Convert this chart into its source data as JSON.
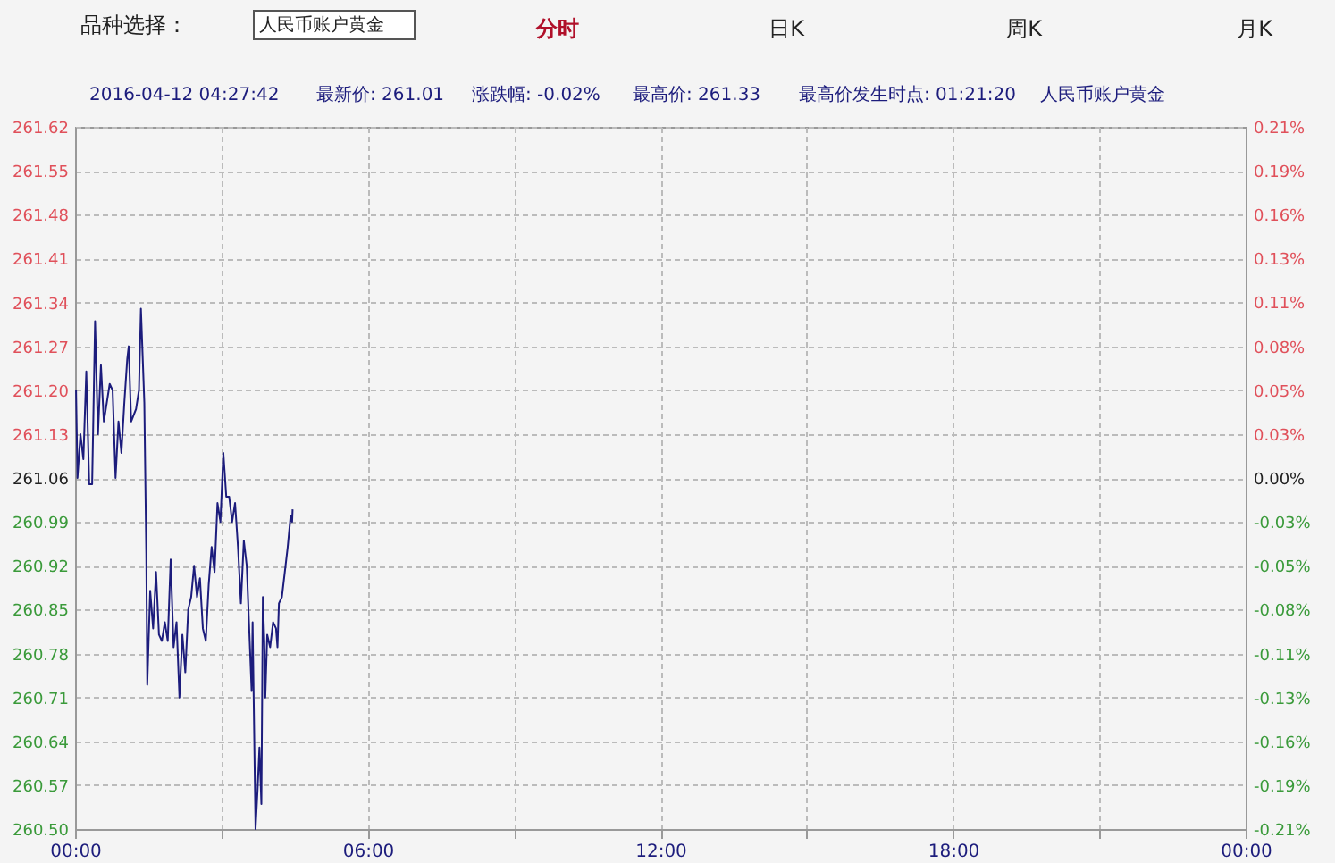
{
  "chart_data": {
    "type": "line",
    "annotations": [
      "品种选择：",
      "人民币账户黄金",
      "分时",
      "日K",
      "周K",
      "月K",
      "2016-04-12 04:27:42",
      "最新价: 261.01",
      "涨跌幅: -0.02%",
      "最高价: 261.33",
      "最高价发生时点:  01:21:20",
      "人民币账户黄金"
    ],
    "x": [
      0.02,
      0.05,
      0.11,
      0.17,
      0.23,
      0.29,
      0.35,
      0.41,
      0.47,
      0.53,
      0.59,
      0.65,
      0.71,
      0.77,
      0.83,
      0.89,
      0.95,
      1.01,
      1.07,
      1.1,
      1.15,
      1.25,
      1.31,
      1.35,
      1.42,
      1.46,
      1.48,
      1.54,
      1.6,
      1.66,
      1.72,
      1.78,
      1.84,
      1.9,
      1.96,
      2.02,
      2.08,
      2.14,
      2.2,
      2.26,
      2.32,
      2.38,
      2.44,
      2.5,
      2.56,
      2.62,
      2.68,
      2.74,
      2.8,
      2.86,
      2.92,
      2.98,
      3.04,
      3.1,
      3.16,
      3.22,
      3.28,
      3.34,
      3.4,
      3.46,
      3.52,
      3.58,
      3.62,
      3.64,
      3.7,
      3.74,
      3.78,
      3.82,
      3.85,
      3.88,
      3.9,
      3.94,
      4.0,
      4.06,
      4.12,
      4.15,
      4.18,
      4.24,
      4.3,
      4.36,
      4.42,
      4.45,
      4.46
    ],
    "series": [
      {
        "color": "#1c1c7c",
        "values": [
          261.2,
          261.06,
          261.13,
          261.09,
          261.23,
          261.05,
          261.05,
          261.31,
          261.13,
          261.24,
          261.15,
          261.18,
          261.21,
          261.2,
          261.06,
          261.15,
          261.1,
          261.18,
          261.25,
          261.27,
          261.15,
          261.17,
          261.2,
          261.33,
          261.18,
          260.94,
          260.73,
          260.88,
          260.82,
          260.91,
          260.81,
          260.8,
          260.83,
          260.8,
          260.93,
          260.79,
          260.83,
          260.71,
          260.81,
          260.75,
          260.85,
          260.87,
          260.92,
          260.87,
          260.9,
          260.82,
          260.8,
          260.89,
          260.95,
          260.91,
          261.02,
          260.99,
          261.1,
          261.03,
          261.03,
          260.99,
          261.02,
          260.95,
          260.86,
          260.96,
          260.92,
          260.8,
          260.72,
          260.83,
          260.5,
          260.56,
          260.63,
          260.54,
          260.87,
          260.8,
          260.71,
          260.81,
          260.79,
          260.83,
          260.82,
          260.79,
          260.86,
          260.87,
          260.91,
          260.95,
          261.0,
          260.99,
          261.01
        ]
      }
    ],
    "xlim": [
      0,
      24
    ],
    "xticks": [
      {
        "value": 0,
        "label": "00:00"
      },
      {
        "value": 3,
        "label": null
      },
      {
        "value": 6,
        "label": "06:00"
      },
      {
        "value": 9,
        "label": null
      },
      {
        "value": 12,
        "label": "12:00"
      },
      {
        "value": 15,
        "label": null
      },
      {
        "value": 18,
        "label": "18:00"
      },
      {
        "value": 21,
        "label": null
      },
      {
        "value": 24,
        "label": "00:00"
      }
    ],
    "ylim": [
      260.5,
      261.62
    ],
    "yticks": [
      {
        "value": 260.5,
        "label": "260.50"
      },
      260.57,
      260.64,
      260.71,
      260.78,
      260.85,
      260.92,
      260.99,
      261.06,
      261.13,
      {
        "value": 261.2,
        "label": "261.20"
      },
      261.27,
      261.34,
      261.41,
      261.48,
      261.55,
      261.62
    ],
    "y2lim": [
      -0.2145,
      0.2145
    ],
    "y2ticks": [
      {
        "value": -0.2145,
        "label": "-0.21%"
      },
      {
        "value": -0.1877,
        "label": "-0.19%"
      },
      {
        "value": -0.1609,
        "label": "-0.16%"
      },
      {
        "value": -0.1341,
        "label": "-0.13%"
      },
      {
        "value": -0.1073,
        "label": "-0.11%"
      },
      {
        "value": -0.0804,
        "label": "-0.08%"
      },
      {
        "value": -0.0536,
        "label": "-0.05%"
      },
      {
        "value": -0.0268,
        "label": "-0.03%"
      },
      {
        "value": 0,
        "label": "0.00%"
      },
      {
        "value": 0.0268,
        "label": "0.03%"
      },
      {
        "value": 0.0536,
        "label": "0.05%"
      },
      {
        "value": 0.0804,
        "label": "0.08%"
      },
      {
        "value": 0.1073,
        "label": "0.11%"
      },
      {
        "value": 0.1341,
        "label": "0.13%"
      },
      {
        "value": 0.1609,
        "label": "0.16%"
      },
      {
        "value": 0.1877,
        "label": "0.19%"
      },
      {
        "value": 0.2145,
        "label": "0.21%"
      }
    ],
    "grid": true,
    "marker": "none",
    "line_style": "solid"
  }
}
